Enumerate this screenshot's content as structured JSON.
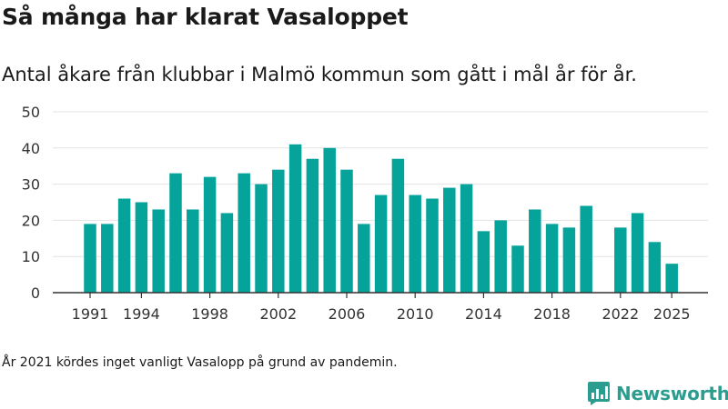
{
  "brand": {
    "name": "Newsworthy",
    "color": "#2a9d8f",
    "icon": "bar-chart-speech-bubble-icon"
  },
  "note": "År 2021 kördes inget vanligt Vasalopp på grund av pandemin.",
  "chart_data": {
    "type": "bar",
    "title": "Så många har klarat Vasaloppet",
    "subtitle": "Antal åkare från klubbar i Malmö kommun som gått i mål år för år.",
    "xlabel": "",
    "ylabel": "",
    "color": "#06a39b",
    "ylim": [
      0,
      50
    ],
    "yticks": [
      0,
      10,
      20,
      30,
      40,
      50
    ],
    "xticks": [
      1991,
      1994,
      1998,
      2002,
      2006,
      2010,
      2014,
      2018,
      2022,
      2025
    ],
    "grid": true,
    "legend": "none",
    "x": [
      1991,
      1992,
      1993,
      1994,
      1995,
      1996,
      1997,
      1998,
      1999,
      2000,
      2001,
      2002,
      2003,
      2004,
      2005,
      2006,
      2007,
      2008,
      2009,
      2010,
      2011,
      2012,
      2013,
      2014,
      2015,
      2016,
      2017,
      2018,
      2019,
      2020,
      2021,
      2022,
      2023,
      2024,
      2025
    ],
    "values": [
      19,
      19,
      26,
      25,
      23,
      33,
      23,
      32,
      22,
      33,
      30,
      34,
      41,
      37,
      40,
      34,
      19,
      27,
      37,
      27,
      26,
      29,
      30,
      17,
      20,
      13,
      23,
      19,
      18,
      24,
      null,
      18,
      22,
      14,
      8
    ]
  }
}
